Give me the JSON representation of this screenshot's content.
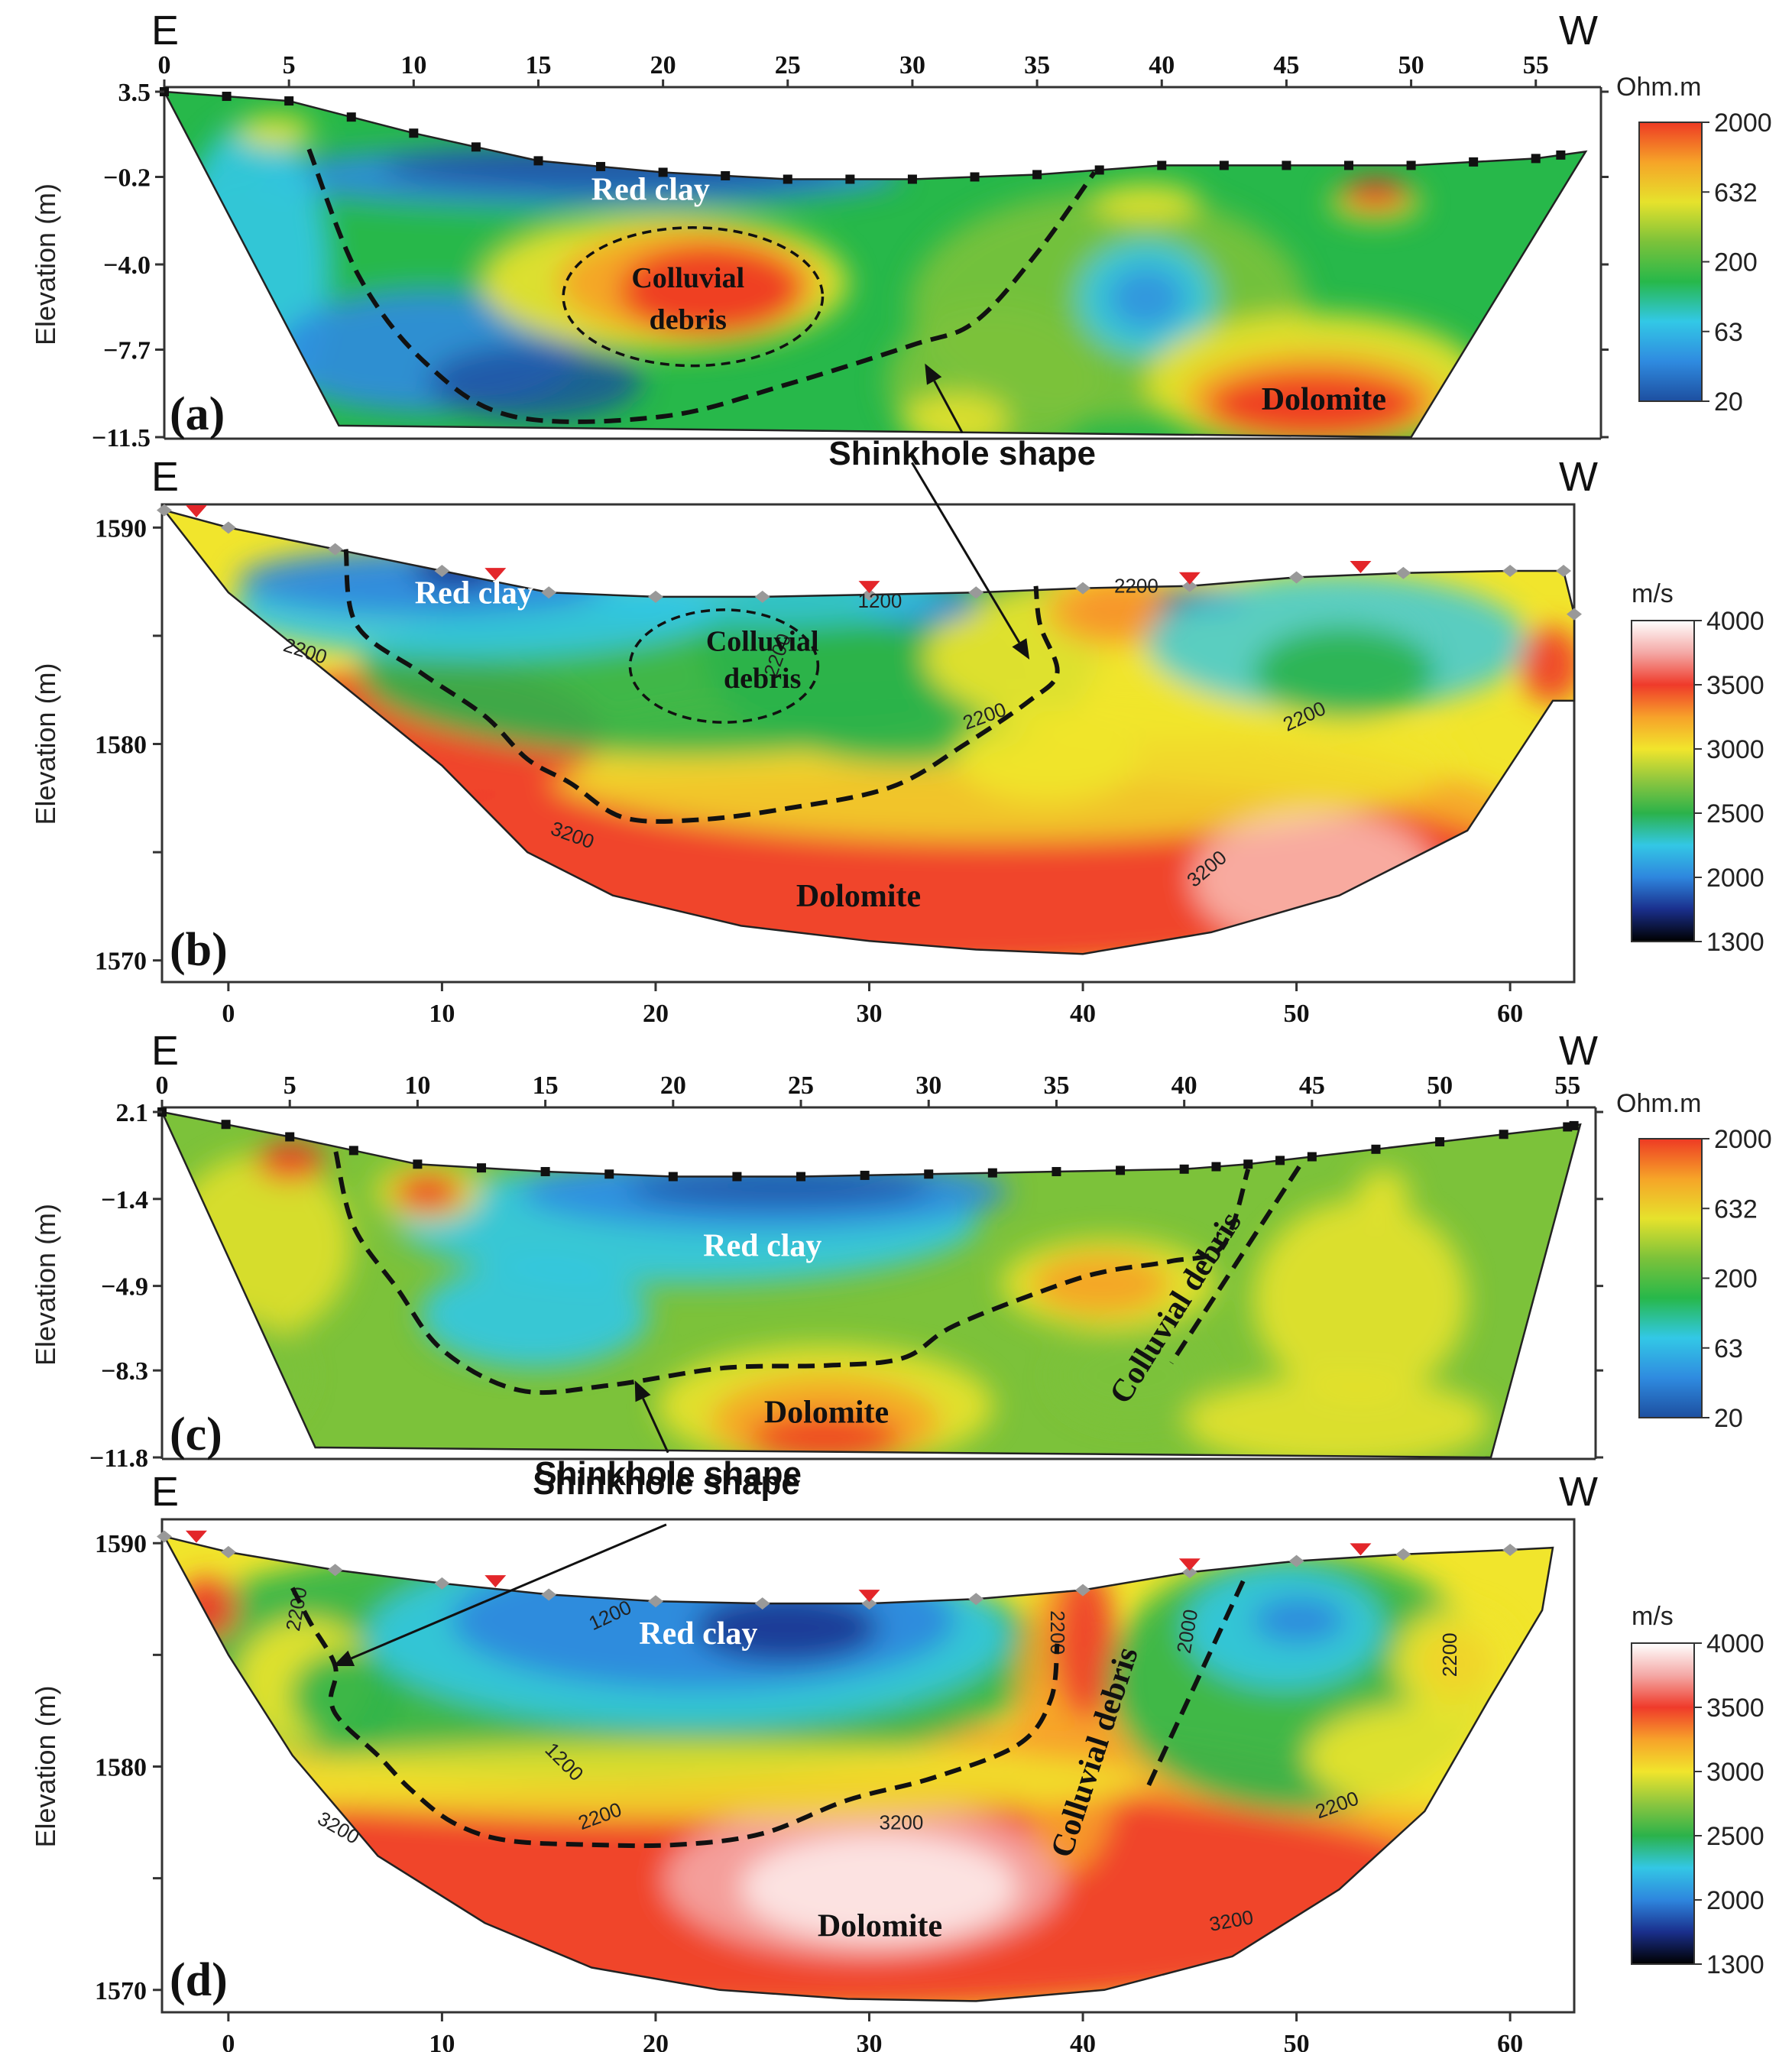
{
  "colors": {
    "resistivity_scale": [
      "#1d4fa0",
      "#2f8be0",
      "#32c8e6",
      "#27b84a",
      "#7cc23a",
      "#e6e22c",
      "#f6a428",
      "#ee3a24"
    ],
    "velocity_scale": [
      "#000000",
      "#1a2f8c",
      "#2e86de",
      "#33c7e5",
      "#2bb24a",
      "#8cc63f",
      "#f1e52c",
      "#f7a12a",
      "#ef3a2a",
      "#f4a9a6",
      "#ffffff"
    ],
    "sinkhole_line": "#111111",
    "frame": "#333333"
  },
  "chart_data": [
    {
      "id": "a",
      "type": "heatmap",
      "method": "electrical resistivity tomography",
      "panel_label": "(a)",
      "left_direction": "E",
      "right_direction": "W",
      "ylabel": "Elevation (m)",
      "x_ticks": [
        0,
        5,
        10,
        15,
        20,
        25,
        30,
        35,
        40,
        45,
        50,
        55
      ],
      "xlim": [
        0,
        57
      ],
      "y_ticks": [
        3.5,
        -0.2,
        -4.0,
        -7.7,
        -11.5
      ],
      "y_tick_labels": [
        "3.5",
        "-0.2",
        "-4.0",
        "-7.7",
        "-11.5"
      ],
      "ylim": [
        -11.5,
        3.5
      ],
      "colorbar_unit": "Ohm.m",
      "colorbar_ticks": [
        "2000",
        "632",
        "200",
        "63",
        "20"
      ],
      "surface": {
        "x": [
          0,
          5,
          10,
          15,
          20,
          25,
          30,
          35,
          40,
          45,
          50,
          55,
          57
        ],
        "y": [
          3.5,
          3.1,
          1.7,
          0.5,
          -0.0,
          -0.3,
          -0.3,
          -0.1,
          0.3,
          0.3,
          0.3,
          0.6,
          0.9
        ]
      },
      "bottom": {
        "x": [
          7.0,
          50.0
        ],
        "y": [
          -11.0,
          -11.5
        ]
      },
      "labels": [
        {
          "text": "Red clay",
          "x": 19.5,
          "y": -1.2
        },
        {
          "text": "Colluvial",
          "x": 21,
          "y": -5.0
        },
        {
          "text": "debris",
          "x": 21,
          "y": -6.8
        },
        {
          "text": "Dolomite",
          "x": 46.5,
          "y": -10.3
        }
      ],
      "sinkhole_outline": {
        "x": [
          5.8,
          7.8,
          10.5,
          14,
          20,
          25,
          30,
          32.5,
          35,
          37.3
        ],
        "y": [
          1.0,
          -4.5,
          -8.3,
          -10.6,
          -10.6,
          -9.2,
          -7.5,
          -6.5,
          -3.5,
          0.0
        ]
      },
      "ellipses": [
        {
          "cx": 21.2,
          "cy": -5.4,
          "rx": 5.2,
          "ry": 3.0
        }
      ],
      "annotation": {
        "text": "Shinkhole shape",
        "x": 32.0,
        "y": -12.7,
        "arrow_to": {
          "x": 30.5,
          "y": -8.3
        }
      }
    },
    {
      "id": "b",
      "type": "heatmap",
      "method": "seismic refraction tomography",
      "panel_label": "(b)",
      "left_direction": "E",
      "right_direction": "W",
      "ylabel": "Elevation (m)",
      "x_ticks": [
        0,
        10,
        20,
        30,
        40,
        50,
        60
      ],
      "xlim": [
        -3,
        63
      ],
      "y_ticks": [
        1590,
        1580,
        1570
      ],
      "ylim": [
        1569,
        1591
      ],
      "colorbar_unit": "m/s",
      "colorbar_ticks": [
        "4000",
        "3500",
        "3000",
        "2500",
        "2000",
        "1300"
      ],
      "surface": {
        "x": [
          -3,
          0,
          5,
          10,
          15,
          20,
          25,
          30,
          35,
          40,
          45,
          50,
          55,
          60,
          62.5,
          63.0,
          63.0
        ],
        "y": [
          1590.8,
          1590.0,
          1589.0,
          1588.0,
          1587.0,
          1586.8,
          1586.8,
          1586.9,
          1587.0,
          1587.2,
          1587.3,
          1587.7,
          1587.9,
          1588.0,
          1588.0,
          1586.0,
          1582.0
        ]
      },
      "bottom": {
        "x": [
          62.0,
          58.0,
          52.0,
          46.0,
          40.0,
          35.0,
          30.0,
          24.0,
          18.0,
          14.0,
          10.0,
          5.0,
          0.0,
          -3.0
        ],
        "y": [
          1582.0,
          1576.0,
          1573.0,
          1571.3,
          1570.3,
          1570.5,
          1570.9,
          1571.6,
          1573.0,
          1575.0,
          1579.0,
          1583.0,
          1587.0,
          1590.8
        ]
      },
      "labels": [
        {
          "text": "Red clay",
          "x": 11.5,
          "y": 1586.5
        },
        {
          "text": "Colluvial",
          "x": 25.0,
          "y": 1584.3
        },
        {
          "text": "debris",
          "x": 25.0,
          "y": 1582.6
        },
        {
          "text": "Dolomite",
          "x": 29.5,
          "y": 1572.5
        }
      ],
      "contour_labels": [
        {
          "text": "1200",
          "x": 30.5,
          "y": 1586.3,
          "rotate": 0
        },
        {
          "text": "2200",
          "x": 3.5,
          "y": 1584.0,
          "rotate": 18
        },
        {
          "text": "2200",
          "x": 26.0,
          "y": 1584.0,
          "rotate": -70
        },
        {
          "text": "2200",
          "x": 35.5,
          "y": 1581.0,
          "rotate": -20
        },
        {
          "text": "2200",
          "x": 42.5,
          "y": 1587.0,
          "rotate": 0
        },
        {
          "text": "2200",
          "x": 50.5,
          "y": 1581.0,
          "rotate": -25
        },
        {
          "text": "3200",
          "x": 16.0,
          "y": 1575.5,
          "rotate": 20
        },
        {
          "text": "3200",
          "x": 46.0,
          "y": 1574.0,
          "rotate": -40
        }
      ],
      "sinkhole_outline": {
        "x": [
          5.5,
          6.0,
          9.0,
          12.0,
          14.0,
          16.0,
          18.5,
          22.0,
          26.0,
          31.0,
          34.5,
          37.5,
          38.8,
          38.0,
          37.8
        ],
        "y": [
          1589.0,
          1585.5,
          1583.3,
          1581.3,
          1579.3,
          1578.2,
          1576.6,
          1576.5,
          1577.0,
          1578.0,
          1580.0,
          1582.0,
          1583.3,
          1585.5,
          1587.3
        ]
      },
      "ellipses": [
        {
          "cx": 23.2,
          "cy": 1583.6,
          "rx": 4.4,
          "ry": 2.6
        }
      ],
      "annotation": {
        "arrow_from": {
          "x": 32.0,
          "y": 1593.0
        },
        "arrow_to": {
          "x": 37.5,
          "y": 1583.9
        }
      }
    },
    {
      "id": "c",
      "type": "heatmap",
      "method": "electrical resistivity tomography",
      "panel_label": "(c)",
      "left_direction": "E",
      "right_direction": "W",
      "ylabel": "Elevation (m)",
      "x_ticks": [
        0,
        5,
        10,
        15,
        20,
        25,
        30,
        35,
        40,
        45,
        50,
        55
      ],
      "xlim": [
        0,
        55.5
      ],
      "y_ticks": [
        2.1,
        -1.4,
        -4.9,
        -8.3,
        -11.8
      ],
      "y_tick_labels": [
        "2.1",
        "-1.4",
        "-4.9",
        "-8.3",
        "-11.8"
      ],
      "ylim": [
        -11.8,
        2.1
      ],
      "colorbar_unit": "Ohm.m",
      "colorbar_ticks": [
        "2000",
        "632",
        "200",
        "63",
        "20"
      ],
      "surface": {
        "x": [
          0,
          5,
          10,
          15,
          20,
          25,
          30,
          35,
          40,
          42.5,
          45,
          50,
          55,
          55.5
        ],
        "y": [
          2.1,
          1.1,
          0.0,
          -0.3,
          -0.5,
          -0.5,
          -0.4,
          -0.3,
          -0.2,
          0.0,
          0.3,
          0.9,
          1.5,
          1.6
        ]
      },
      "bottom": {
        "x": [
          6.0,
          52.0
        ],
        "y": [
          -11.4,
          -11.8
        ]
      },
      "labels": [
        {
          "text": "Red clay",
          "x": 23.5,
          "y": -3.7
        },
        {
          "text": "Dolomite",
          "x": 26.0,
          "y": -10.4
        }
      ],
      "rotated_labels": [
        {
          "text": "Colluvial debris",
          "x": 40.0,
          "y": -6.0,
          "rotate": -58
        }
      ],
      "sinkhole_outline": {
        "x": [
          6.8,
          7.5,
          9.2,
          11.0,
          14.0,
          17.5,
          22.0,
          26.0,
          29.0,
          31.0,
          35.0,
          37.0,
          39.5,
          41.5,
          42.5
        ],
        "y": [
          0.5,
          -2.5,
          -5.0,
          -7.5,
          -9.1,
          -8.9,
          -8.2,
          -8.1,
          -7.8,
          -6.5,
          -4.9,
          -4.3,
          -3.9,
          -3.3,
          -0.2
        ]
      },
      "extra_dashed": [
        {
          "x": [
            44.5,
            39.5
          ],
          "y": [
            -0.1,
            -8.0
          ]
        }
      ],
      "annotation": {
        "text": "Shinkhole shape",
        "x": 19.8,
        "y": -12.9,
        "arrow_to": {
          "x": 18.5,
          "y": -8.7
        }
      }
    },
    {
      "id": "d",
      "type": "heatmap",
      "method": "seismic refraction tomography",
      "panel_label": "(d)",
      "left_direction": "E",
      "right_direction": "W",
      "ylabel": "Elevation (m)",
      "x_ticks": [
        0,
        10,
        20,
        30,
        40,
        50,
        60
      ],
      "xlim": [
        -3,
        63
      ],
      "y_ticks": [
        1590,
        1580,
        1570
      ],
      "ylim": [
        1569,
        1591
      ],
      "colorbar_unit": "m/s",
      "colorbar_ticks": [
        "4000",
        "3500",
        "3000",
        "2500",
        "2000",
        "1300"
      ],
      "surface": {
        "x": [
          -3,
          0,
          5,
          10,
          15,
          20,
          25,
          30,
          35,
          40,
          45,
          50,
          55,
          60,
          62
        ],
        "y": [
          1590.3,
          1589.6,
          1588.8,
          1588.2,
          1587.7,
          1587.4,
          1587.3,
          1587.3,
          1587.5,
          1587.9,
          1588.7,
          1589.2,
          1589.5,
          1589.7,
          1589.8
        ]
      },
      "bottom": {
        "x": [
          61.5,
          59.0,
          56.0,
          52.0,
          47.0,
          41.0,
          35.0,
          29.0,
          23.0,
          17.0,
          12.0,
          7.0,
          3.0,
          0.0,
          -3.0
        ],
        "y": [
          1587.0,
          1583.0,
          1578.0,
          1574.5,
          1571.5,
          1570.0,
          1569.5,
          1569.6,
          1570.0,
          1571.0,
          1573.0,
          1576.0,
          1580.5,
          1585.0,
          1590.3
        ]
      },
      "labels": [
        {
          "text": "Red clay",
          "x": 22.0,
          "y": 1585.5
        },
        {
          "text": "Dolomite",
          "x": 30.5,
          "y": 1572.4
        }
      ],
      "rotated_labels": [
        {
          "text": "Colluvial debris",
          "x": 41.0,
          "y": 1580.5,
          "rotate": -72
        }
      ],
      "contour_labels": [
        {
          "text": "1200",
          "x": 18.0,
          "y": 1586.5,
          "rotate": -25
        },
        {
          "text": "1200",
          "x": 15.5,
          "y": 1580.0,
          "rotate": 45
        },
        {
          "text": "2200",
          "x": 3.5,
          "y": 1587.0,
          "rotate": -80
        },
        {
          "text": "2200",
          "x": 17.5,
          "y": 1577.5,
          "rotate": -20
        },
        {
          "text": "2200",
          "x": 38.5,
          "y": 1586.0,
          "rotate": 90
        },
        {
          "text": "2000",
          "x": 45.2,
          "y": 1586.0,
          "rotate": -80
        },
        {
          "text": "2200",
          "x": 57.5,
          "y": 1585.0,
          "rotate": -90
        },
        {
          "text": "2200",
          "x": 52.0,
          "y": 1578.0,
          "rotate": -20
        },
        {
          "text": "3200",
          "x": 5.0,
          "y": 1577.0,
          "rotate": 30
        },
        {
          "text": "3200",
          "x": 31.5,
          "y": 1577.2,
          "rotate": 0
        },
        {
          "text": "3200",
          "x": 47.0,
          "y": 1572.8,
          "rotate": -10
        }
      ],
      "sinkhole_outline": {
        "x": [
          3.0,
          3.8,
          5.0,
          4.8,
          5.3,
          7.0,
          8.5,
          10.5,
          13.0,
          17.0,
          21.0,
          25.0,
          29.0,
          33.0,
          37.0,
          38.5,
          38.8
        ],
        "y": [
          1588.0,
          1586.5,
          1584.5,
          1583.0,
          1582.0,
          1580.5,
          1579.0,
          1577.5,
          1576.7,
          1576.5,
          1576.5,
          1577.0,
          1578.5,
          1579.5,
          1581.0,
          1583.0,
          1585.5
        ]
      },
      "extra_dashed": [
        {
          "x": [
            47.5,
            43.0
          ],
          "y": [
            1588.3,
            1579.0
          ]
        }
      ],
      "annotation": {
        "text": "Shinkhole shape",
        "x": 20.5,
        "y": 1592.2,
        "arrow_to": {
          "x": 4.9,
          "y": 1584.5
        }
      }
    }
  ]
}
